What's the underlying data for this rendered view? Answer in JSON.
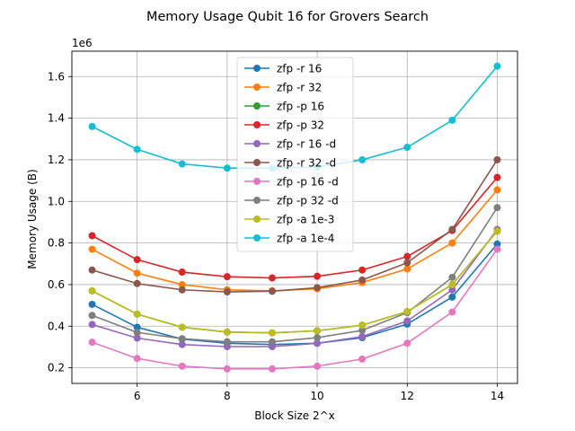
{
  "chart_data": {
    "type": "line",
    "title": "Memory Usage Qubit 16 for Grovers Search",
    "xlabel": "Block Size 2^x",
    "ylabel": "Memory Usage (B)",
    "offset_text": "1e6",
    "x": [
      5,
      6,
      7,
      8,
      9,
      10,
      11,
      12,
      13,
      14
    ],
    "xlim": [
      4.55,
      14.45
    ],
    "ylim": [
      0.125,
      1.722
    ],
    "x_ticks": [
      6,
      8,
      10,
      12,
      14
    ],
    "y_ticks": [
      0.2,
      0.4,
      0.6,
      0.8,
      1.0,
      1.2,
      1.4,
      1.6
    ],
    "y_tick_labels": [
      "0.2",
      "0.4",
      "0.6",
      "0.8",
      "1.0",
      "1.2",
      "1.4",
      "1.6"
    ],
    "grid": true,
    "legend_position": "top-center",
    "series": [
      {
        "name": "zfp -r 16",
        "color": "#1f77b4",
        "values": [
          0.505,
          0.395,
          0.338,
          0.318,
          0.312,
          0.318,
          0.345,
          0.41,
          0.54,
          0.795
        ]
      },
      {
        "name": "zfp -r 32",
        "color": "#ff7f0e",
        "values": [
          0.77,
          0.655,
          0.6,
          0.575,
          0.57,
          0.58,
          0.61,
          0.675,
          0.8,
          1.055
        ]
      },
      {
        "name": "zfp -p 16",
        "color": "#2ca02c",
        "values": [
          0.57,
          0.458,
          0.395,
          0.372,
          0.368,
          0.378,
          0.405,
          0.47,
          0.6,
          0.857
        ]
      },
      {
        "name": "zfp -p 32",
        "color": "#d62728",
        "values": [
          0.835,
          0.72,
          0.66,
          0.638,
          0.632,
          0.64,
          0.67,
          0.735,
          0.86,
          1.115
        ]
      },
      {
        "name": "zfp -r 16 -d",
        "color": "#9467bd",
        "values": [
          0.408,
          0.343,
          0.312,
          0.302,
          0.302,
          0.318,
          0.35,
          0.425,
          0.575,
          0.865
        ]
      },
      {
        "name": "zfp -r 32 -d",
        "color": "#8c564b",
        "values": [
          0.67,
          0.605,
          0.575,
          0.565,
          0.568,
          0.585,
          0.622,
          0.705,
          0.865,
          1.2
        ]
      },
      {
        "name": "zfp -p 16 -d",
        "color": "#e377c2",
        "values": [
          0.323,
          0.245,
          0.208,
          0.195,
          0.195,
          0.208,
          0.242,
          0.318,
          0.468,
          0.77
        ]
      },
      {
        "name": "zfp -p 32 -d",
        "color": "#7f7f7f",
        "values": [
          0.452,
          0.37,
          0.34,
          0.325,
          0.325,
          0.345,
          0.38,
          0.465,
          0.635,
          0.97
        ]
      },
      {
        "name": "zfp -a 1e-3",
        "color": "#bcbd22",
        "values": [
          0.57,
          0.458,
          0.395,
          0.372,
          0.368,
          0.378,
          0.405,
          0.47,
          0.6,
          0.857
        ]
      },
      {
        "name": "zfp -a 1e-4",
        "color": "#17becf",
        "values": [
          1.36,
          1.25,
          1.18,
          1.16,
          1.16,
          1.165,
          1.2,
          1.26,
          1.39,
          1.65
        ]
      }
    ]
  }
}
